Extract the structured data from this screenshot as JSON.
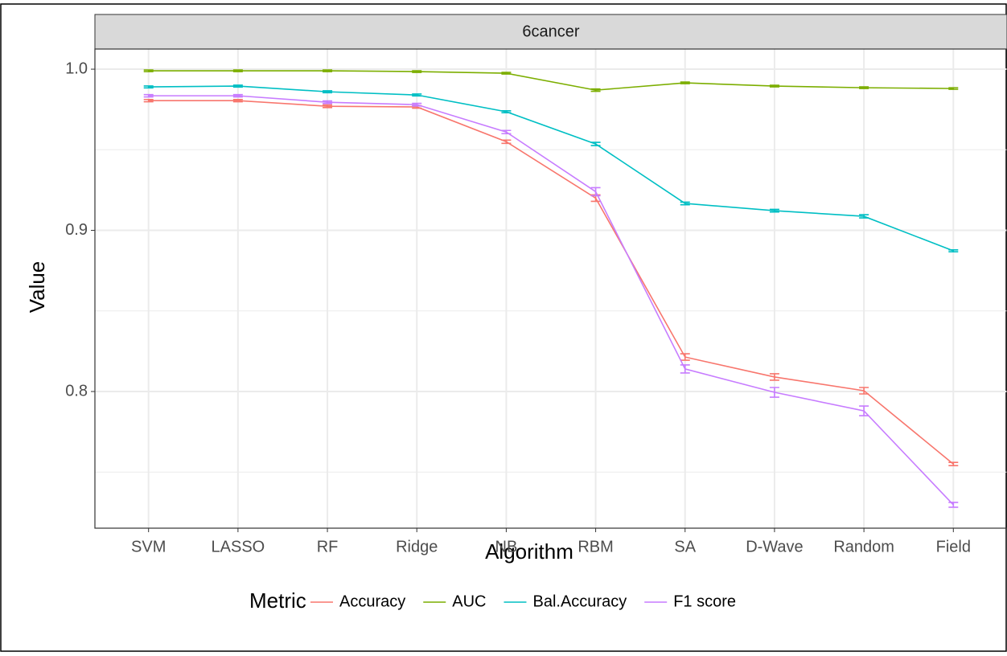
{
  "chart_data": {
    "type": "line",
    "strip": "6cancer",
    "x_label": "Algorithm",
    "y_label": "Value",
    "legend_title": "Metric",
    "legend_position": "bottom",
    "grid": true,
    "categories": [
      "SVM",
      "LASSO",
      "RF",
      "Ridge",
      "NB",
      "RBM",
      "SA",
      "D-Wave",
      "Random",
      "Field"
    ],
    "ylim": [
      0.7152,
      1.0125
    ],
    "yticks": [
      0.8,
      0.9,
      {
        "value": 1,
        "label": "1.0"
      }
    ],
    "yminor": [
      0.75,
      0.85,
      0.95
    ],
    "series": [
      {
        "name": "Accuracy",
        "color": "#F8766D",
        "values": [
          0.9805,
          0.9805,
          0.977,
          0.9766,
          0.955,
          0.92,
          0.8214,
          0.809,
          0.8005,
          0.755
        ],
        "errors": [
          0.0007,
          0.0007,
          0.0008,
          0.0008,
          0.001,
          0.002,
          0.002,
          0.002,
          0.002,
          0.001
        ]
      },
      {
        "name": "AUC",
        "color": "#7CAE00",
        "values": [
          0.999,
          0.999,
          0.999,
          0.9985,
          0.9975,
          0.987,
          0.9915,
          0.9895,
          0.9885,
          0.988
        ],
        "errors": [
          0.0005,
          0.0005,
          0.0005,
          0.0005,
          0.0005,
          0.0007,
          0.0005,
          0.0005,
          0.0005,
          0.0005
        ]
      },
      {
        "name": "Bal.Accuracy",
        "color": "#00BFC4",
        "values": [
          0.989,
          0.9895,
          0.986,
          0.984,
          0.9736,
          0.9536,
          0.9167,
          0.9122,
          0.9087,
          0.8873
        ],
        "errors": [
          0.0006,
          0.0006,
          0.0006,
          0.0006,
          0.0006,
          0.001,
          0.0008,
          0.0008,
          0.001,
          0.0006
        ]
      },
      {
        "name": "F1 score",
        "color": "#C77CFF",
        "values": [
          0.9835,
          0.9835,
          0.9795,
          0.978,
          0.961,
          0.924,
          0.814,
          0.7995,
          0.788,
          0.7297
        ],
        "errors": [
          0.0007,
          0.0007,
          0.0008,
          0.0008,
          0.001,
          0.0025,
          0.0025,
          0.003,
          0.003,
          0.0015
        ]
      }
    ]
  }
}
